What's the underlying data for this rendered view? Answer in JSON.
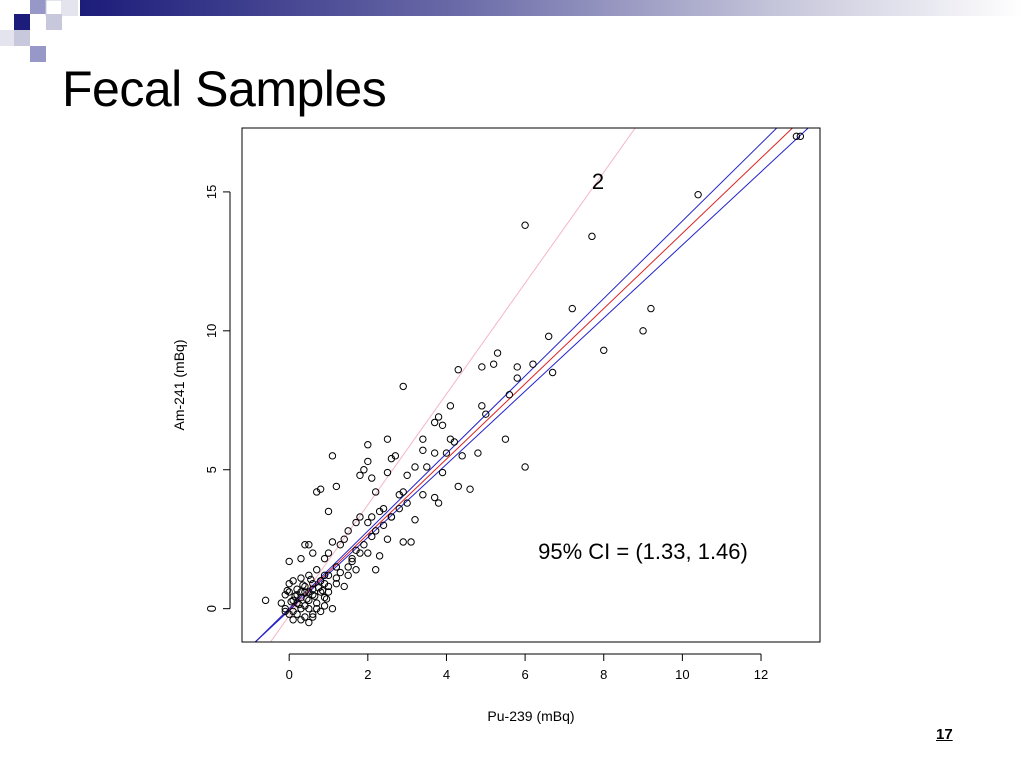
{
  "slide": {
    "title": "Fecal Samples",
    "page_number": "17",
    "colors": {
      "title_bar_dark": "#1c1c7a",
      "title_bar_light": "#c8c8dc"
    }
  },
  "chart_data": {
    "type": "scatter",
    "title": "",
    "xlabel": "Pu-239 (mBq)",
    "ylabel": "Am-241 (mBq)",
    "xlim": [
      -1.2,
      13.5
    ],
    "ylim": [
      -1.2,
      17.3
    ],
    "xticks": [
      0,
      2,
      4,
      6,
      8,
      10,
      12
    ],
    "yticks": [
      0,
      5,
      10,
      15
    ],
    "grid": false,
    "annotations": [
      {
        "text": "2",
        "x": 7.9,
        "y": 15.8
      },
      {
        "text": "95% CI = (1.33, 1.46)",
        "x": 8.0,
        "y": 2.1
      }
    ],
    "lines": [
      {
        "role": "fit",
        "color": "#dd2222",
        "x": [
          -0.9,
          12.8
        ],
        "y": [
          -1.25,
          17.3
        ]
      },
      {
        "role": "ci-upper",
        "color": "#2222cc",
        "x": [
          -0.9,
          12.4
        ],
        "y": [
          -1.25,
          17.3
        ]
      },
      {
        "role": "ci-lower",
        "color": "#2222cc",
        "x": [
          -0.9,
          13.2
        ],
        "y": [
          -1.25,
          17.3
        ]
      },
      {
        "role": "reference",
        "color": "#f4b6c4",
        "x": [
          -0.5,
          8.8
        ],
        "y": [
          -1.25,
          17.3
        ]
      }
    ],
    "points_color": "#000000",
    "points": [
      [
        12.9,
        17.0
      ],
      [
        13.0,
        17.0
      ],
      [
        10.4,
        14.9
      ],
      [
        6.0,
        13.8
      ],
      [
        7.7,
        13.4
      ],
      [
        7.2,
        10.8
      ],
      [
        9.2,
        10.8
      ],
      [
        9.0,
        10.0
      ],
      [
        8.0,
        9.3
      ],
      [
        6.6,
        9.8
      ],
      [
        5.3,
        9.2
      ],
      [
        5.2,
        8.8
      ],
      [
        4.9,
        8.7
      ],
      [
        5.8,
        8.7
      ],
      [
        6.2,
        8.8
      ],
      [
        5.8,
        8.3
      ],
      [
        6.7,
        8.5
      ],
      [
        4.3,
        8.6
      ],
      [
        2.9,
        8.0
      ],
      [
        5.6,
        7.7
      ],
      [
        4.9,
        7.3
      ],
      [
        5.0,
        7.0
      ],
      [
        4.1,
        7.3
      ],
      [
        3.8,
        6.9
      ],
      [
        3.7,
        6.7
      ],
      [
        3.9,
        6.6
      ],
      [
        4.1,
        6.1
      ],
      [
        4.2,
        6.0
      ],
      [
        3.4,
        6.1
      ],
      [
        2.5,
        6.1
      ],
      [
        2.0,
        5.9
      ],
      [
        5.5,
        6.1
      ],
      [
        4.0,
        5.6
      ],
      [
        4.4,
        5.5
      ],
      [
        4.8,
        5.6
      ],
      [
        3.7,
        5.6
      ],
      [
        3.4,
        5.7
      ],
      [
        2.7,
        5.5
      ],
      [
        2.6,
        5.4
      ],
      [
        2.0,
        5.3
      ],
      [
        1.1,
        5.5
      ],
      [
        6.0,
        5.1
      ],
      [
        3.2,
        5.1
      ],
      [
        3.5,
        5.1
      ],
      [
        3.9,
        4.9
      ],
      [
        3.0,
        4.8
      ],
      [
        2.5,
        4.9
      ],
      [
        1.9,
        5.0
      ],
      [
        1.8,
        4.8
      ],
      [
        2.1,
        4.7
      ],
      [
        4.3,
        4.4
      ],
      [
        4.6,
        4.3
      ],
      [
        3.4,
        4.1
      ],
      [
        3.7,
        4.0
      ],
      [
        3.8,
        3.8
      ],
      [
        2.8,
        4.1
      ],
      [
        2.9,
        4.2
      ],
      [
        2.2,
        4.2
      ],
      [
        1.2,
        4.4
      ],
      [
        0.8,
        4.3
      ],
      [
        0.7,
        4.2
      ],
      [
        3.2,
        3.2
      ],
      [
        2.4,
        3.6
      ],
      [
        2.3,
        3.5
      ],
      [
        2.1,
        3.3
      ],
      [
        2.0,
        3.1
      ],
      [
        1.7,
        3.1
      ],
      [
        1.8,
        3.3
      ],
      [
        1.0,
        3.5
      ],
      [
        2.6,
        3.3
      ],
      [
        2.9,
        2.4
      ],
      [
        3.1,
        2.4
      ],
      [
        2.5,
        2.5
      ],
      [
        2.3,
        1.9
      ],
      [
        2.0,
        2.0
      ],
      [
        1.7,
        2.1
      ],
      [
        1.5,
        2.8
      ],
      [
        1.4,
        2.5
      ],
      [
        1.3,
        2.3
      ],
      [
        1.1,
        2.4
      ],
      [
        1.0,
        2.0
      ],
      [
        0.9,
        1.8
      ],
      [
        0.6,
        2.0
      ],
      [
        0.5,
        2.3
      ],
      [
        0.4,
        2.3
      ],
      [
        0.3,
        1.8
      ],
      [
        0.0,
        1.7
      ],
      [
        1.6,
        1.7
      ],
      [
        1.7,
        1.4
      ],
      [
        2.2,
        1.4
      ],
      [
        1.5,
        1.2
      ],
      [
        1.2,
        1.1
      ],
      [
        0.9,
        1.2
      ],
      [
        0.7,
        1.4
      ],
      [
        0.5,
        1.2
      ],
      [
        0.3,
        1.1
      ],
      [
        0.1,
        1.0
      ],
      [
        1.0,
        0.8
      ],
      [
        1.4,
        0.8
      ],
      [
        0.8,
        0.6
      ],
      [
        0.6,
        0.7
      ],
      [
        0.4,
        0.8
      ],
      [
        0.2,
        0.7
      ],
      [
        0.0,
        0.6
      ],
      [
        -0.1,
        0.5
      ],
      [
        -0.6,
        0.3
      ],
      [
        0.1,
        0.3
      ],
      [
        0.3,
        0.4
      ],
      [
        0.5,
        0.3
      ],
      [
        0.7,
        0.2
      ],
      [
        0.9,
        0.1
      ],
      [
        1.1,
        0.0
      ],
      [
        0.8,
        -0.1
      ],
      [
        0.6,
        -0.2
      ],
      [
        0.4,
        -0.3
      ],
      [
        0.2,
        -0.2
      ],
      [
        0.0,
        -0.2
      ],
      [
        -0.1,
        0.0
      ],
      [
        0.3,
        0.0
      ],
      [
        0.5,
        0.0
      ],
      [
        0.7,
        0.0
      ],
      [
        0.2,
        0.5
      ],
      [
        0.4,
        0.6
      ],
      [
        0.6,
        0.5
      ],
      [
        0.1,
        -0.4
      ],
      [
        0.3,
        -0.4
      ],
      [
        0.5,
        -0.5
      ],
      [
        0.6,
        -0.3
      ],
      [
        0.9,
        0.4
      ],
      [
        1.0,
        0.6
      ],
      [
        1.2,
        0.9
      ],
      [
        1.3,
        1.3
      ],
      [
        1.5,
        1.5
      ],
      [
        1.6,
        1.8
      ],
      [
        1.8,
        2.0
      ],
      [
        1.9,
        2.3
      ],
      [
        2.1,
        2.6
      ],
      [
        2.2,
        2.8
      ],
      [
        2.4,
        3.0
      ],
      [
        2.6,
        3.3
      ],
      [
        2.8,
        3.6
      ],
      [
        3.0,
        3.8
      ],
      [
        -0.2,
        0.2
      ],
      [
        0.0,
        0.9
      ],
      [
        0.2,
        0.2
      ],
      [
        0.4,
        0.1
      ],
      [
        0.6,
        0.9
      ],
      [
        0.8,
        1.0
      ],
      [
        1.0,
        1.2
      ],
      [
        0.9,
        0.9
      ],
      [
        1.2,
        1.5
      ],
      [
        0.3,
        0.6
      ],
      [
        0.5,
        0.6
      ],
      [
        0.1,
        -0.1
      ],
      [
        -0.1,
        -0.1
      ],
      [
        0.25,
        0.15
      ],
      [
        0.45,
        0.35
      ],
      [
        0.65,
        0.45
      ],
      [
        0.85,
        0.65
      ],
      [
        0.35,
        0.85
      ],
      [
        0.55,
        1.05
      ],
      [
        0.15,
        0.45
      ],
      [
        0.75,
        0.75
      ],
      [
        0.95,
        0.35
      ],
      [
        0.05,
        0.25
      ],
      [
        -0.05,
        0.65
      ]
    ]
  }
}
